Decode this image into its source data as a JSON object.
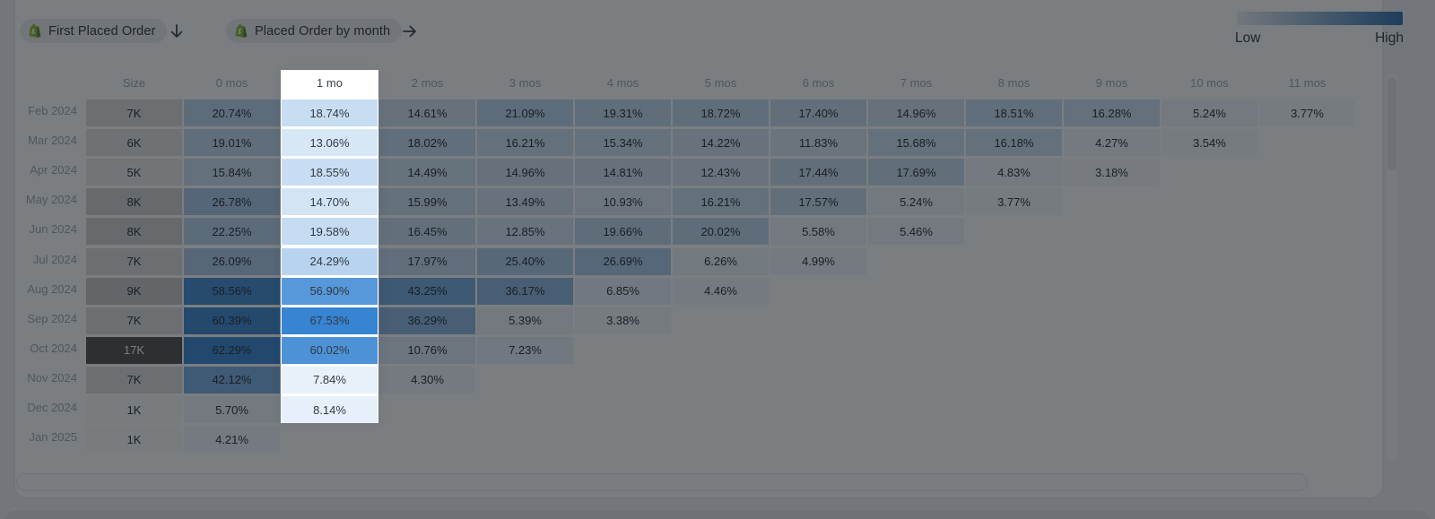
{
  "header": {
    "first_event": {
      "label": "First Placed Order",
      "icon": "shopify-icon"
    },
    "between_icon": "arrow-down",
    "second_event": {
      "label": "Placed Order by month",
      "icon": "shopify-icon"
    },
    "after_icon": "arrow-right",
    "legend": {
      "low_label": "Low",
      "high_label": "High",
      "gradient_start": "#eef1f4",
      "gradient_end": "#3b79b3"
    }
  },
  "chart_data": {
    "type": "heatmap",
    "title": "Cohort retention heatmap: First Placed Order → Placed Order by month",
    "columns": [
      "Size",
      "0 mos",
      "1 mo",
      "2 mos",
      "3 mos",
      "4 mos",
      "5 mos",
      "6 mos",
      "7 mos",
      "8 mos",
      "9 mos",
      "10 mos",
      "11 mos"
    ],
    "highlighted_column": "1 mo",
    "highlighted_data_col": 1,
    "value_format": "percent_2dp",
    "rows": [
      {
        "label": "Feb 2024",
        "size_label": "7K",
        "size_k": 7,
        "values": [
          20.74,
          18.74,
          14.61,
          21.09,
          19.31,
          18.72,
          17.4,
          14.96,
          18.51,
          16.28,
          5.24,
          3.77
        ]
      },
      {
        "label": "Mar 2024",
        "size_label": "6K",
        "size_k": 6,
        "values": [
          19.01,
          13.06,
          18.02,
          16.21,
          15.34,
          14.22,
          11.83,
          15.68,
          16.18,
          4.27,
          3.54
        ]
      },
      {
        "label": "Apr 2024",
        "size_label": "5K",
        "size_k": 5,
        "values": [
          15.84,
          18.55,
          14.49,
          14.96,
          14.81,
          12.43,
          17.44,
          17.69,
          4.83,
          3.18
        ]
      },
      {
        "label": "May 2024",
        "size_label": "8K",
        "size_k": 8,
        "values": [
          26.78,
          14.7,
          15.99,
          13.49,
          10.93,
          16.21,
          17.57,
          5.24,
          3.77
        ]
      },
      {
        "label": "Jun 2024",
        "size_label": "8K",
        "size_k": 8,
        "values": [
          22.25,
          19.58,
          16.45,
          12.85,
          19.66,
          20.02,
          5.58,
          5.46
        ]
      },
      {
        "label": "Jul 2024",
        "size_label": "7K",
        "size_k": 7,
        "values": [
          26.09,
          24.29,
          17.97,
          25.4,
          26.69,
          6.26,
          4.99
        ]
      },
      {
        "label": "Aug 2024",
        "size_label": "9K",
        "size_k": 9,
        "values": [
          58.56,
          56.9,
          43.25,
          36.17,
          6.85,
          4.46
        ]
      },
      {
        "label": "Sep 2024",
        "size_label": "7K",
        "size_k": 7,
        "values": [
          60.39,
          67.53,
          36.29,
          5.39,
          3.38
        ]
      },
      {
        "label": "Oct 2024",
        "size_label": "17K",
        "size_k": 17,
        "values": [
          62.29,
          60.02,
          10.76,
          7.23
        ]
      },
      {
        "label": "Nov 2024",
        "size_label": "7K",
        "size_k": 7,
        "values": [
          42.12,
          7.84,
          4.3
        ]
      },
      {
        "label": "Dec 2024",
        "size_label": "1K",
        "size_k": 1,
        "values": [
          5.7,
          8.14
        ]
      },
      {
        "label": "Jan 2025",
        "size_label": "1K",
        "size_k": 1,
        "values": [
          4.21
        ]
      }
    ],
    "value_color_scale": {
      "low": "#ffffff",
      "high": "#2f80d0",
      "max_value": 70
    },
    "size_color_scale": {
      "low": "#fafafa",
      "high": "#5c5c5c",
      "max_size_k": 17,
      "gamma": 1.8
    }
  },
  "colors": {
    "page_bg": "#eef0f2",
    "card_bg": "#ffffff",
    "dim_overlay": "rgba(2,7,13,0.52)",
    "shopify_green": "#95bf47",
    "shopify_green_dark": "#5e8e3e",
    "cell_text": "#333a41",
    "header_text": "#a6abb1",
    "header_text_active": "#3c4146"
  }
}
